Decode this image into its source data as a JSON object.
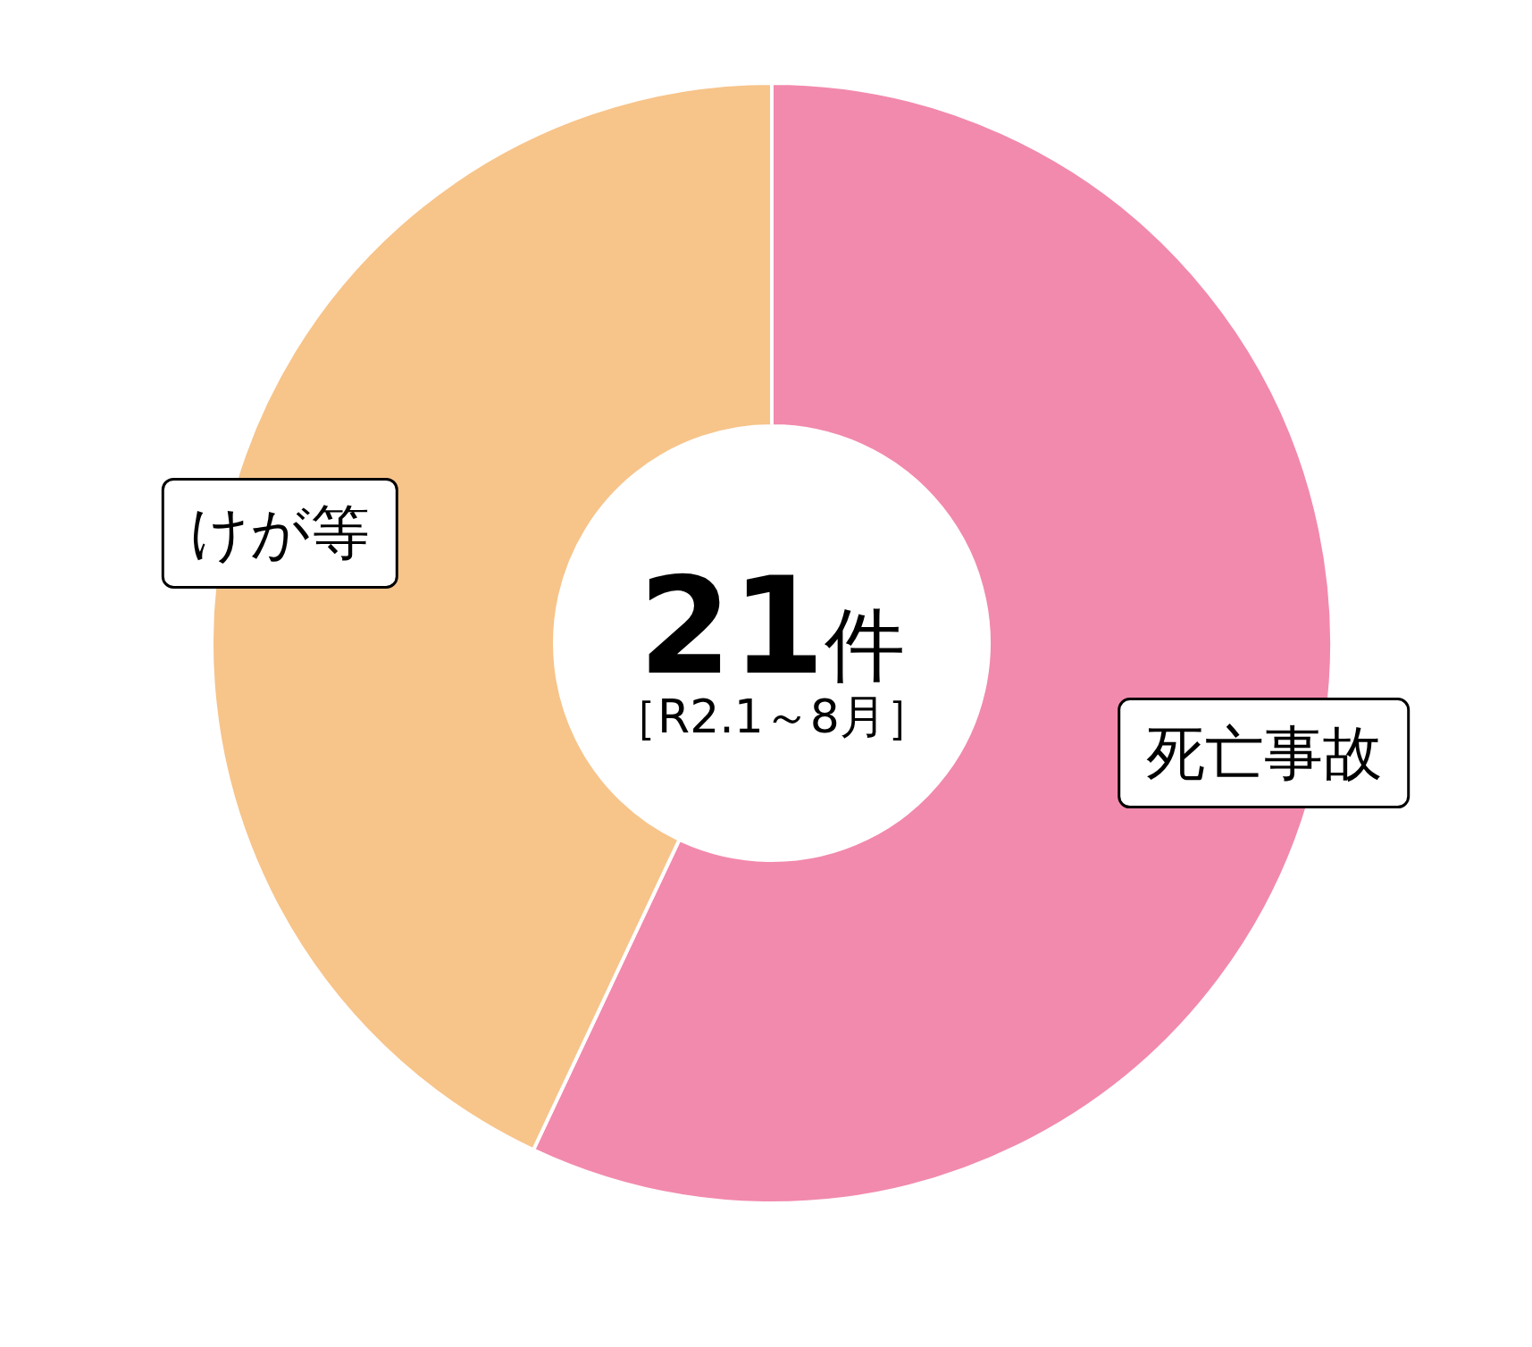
{
  "chart_data": {
    "type": "donut",
    "categories": [
      "死亡事故",
      "けが等"
    ],
    "values": [
      57,
      43
    ],
    "colors": [
      "#f28aad",
      "#f7c48a"
    ],
    "annotations": [
      "21件",
      "［R2.1～8月］"
    ]
  }
}
